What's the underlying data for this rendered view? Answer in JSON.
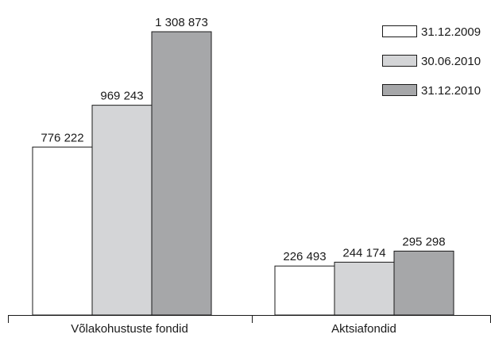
{
  "chart_data": {
    "type": "bar",
    "categories": [
      "Võlakohustuste fondid",
      "Aktsiafondid"
    ],
    "series": [
      {
        "name": "31.12.2009",
        "values": [
          776222,
          226493
        ],
        "labels": [
          "776 222",
          "226 493"
        ],
        "color": "#ffffff"
      },
      {
        "name": "30.06.2010",
        "values": [
          969243,
          244174
        ],
        "labels": [
          "969 243",
          "244 174"
        ],
        "color": "#d4d5d7"
      },
      {
        "name": "31.12.2010",
        "values": [
          1308873,
          295298
        ],
        "labels": [
          "1 308 873",
          "295 298"
        ],
        "color": "#a6a7a9"
      }
    ],
    "title": "",
    "xlabel": "",
    "ylabel": "",
    "ylim": [
      0,
      1308873
    ],
    "grid": false,
    "legend": "top-right",
    "stroke_color": "#1a1a1a"
  }
}
